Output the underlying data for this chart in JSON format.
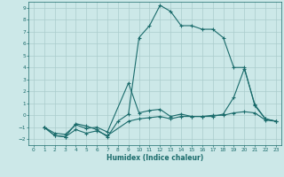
{
  "title": "",
  "xlabel": "Humidex (Indice chaleur)",
  "bg_color": "#cce8e8",
  "grid_color": "#aacccc",
  "line_color": "#1a6b6b",
  "xlim": [
    -0.5,
    23.5
  ],
  "ylim": [
    -2.5,
    9.5
  ],
  "xticks": [
    0,
    1,
    2,
    3,
    4,
    5,
    6,
    7,
    8,
    9,
    10,
    11,
    12,
    13,
    14,
    15,
    16,
    17,
    18,
    19,
    20,
    21,
    22,
    23
  ],
  "yticks": [
    -2,
    -1,
    0,
    1,
    2,
    3,
    4,
    5,
    6,
    7,
    8,
    9
  ],
  "line1_x": [
    1,
    2,
    3,
    4,
    5,
    6,
    7,
    8,
    9,
    10,
    11,
    12,
    13,
    14,
    15,
    16,
    17,
    18,
    19,
    20,
    21,
    22,
    23
  ],
  "line1_y": [
    -1,
    -1.7,
    -1.8,
    -0.7,
    -0.9,
    -1.2,
    -1.8,
    -0.5,
    0.1,
    6.5,
    7.5,
    9.2,
    8.7,
    7.5,
    7.5,
    7.2,
    7.2,
    6.5,
    4.0,
    4.0,
    0.8,
    -0.3,
    -0.5
  ],
  "line2_x": [
    1,
    2,
    3,
    4,
    5,
    6,
    7,
    9,
    10,
    11,
    12,
    13,
    14,
    15,
    16,
    17,
    18,
    19,
    20,
    21,
    22,
    23
  ],
  "line2_y": [
    -1,
    -1.5,
    -1.6,
    -0.8,
    -1.1,
    -1.0,
    -1.4,
    2.7,
    0.2,
    0.4,
    0.5,
    -0.1,
    0.1,
    -0.1,
    -0.1,
    -0.1,
    0.1,
    1.5,
    3.9,
    0.9,
    -0.3,
    -0.5
  ],
  "line3_x": [
    1,
    2,
    3,
    4,
    5,
    6,
    7,
    9,
    10,
    11,
    12,
    13,
    14,
    15,
    16,
    17,
    18,
    19,
    20,
    21,
    22,
    23
  ],
  "line3_y": [
    -1,
    -1.7,
    -1.8,
    -1.2,
    -1.5,
    -1.3,
    -1.7,
    -0.5,
    -0.3,
    -0.2,
    -0.1,
    -0.3,
    -0.1,
    -0.1,
    -0.1,
    0.0,
    0.0,
    0.2,
    0.3,
    0.2,
    -0.4,
    -0.5
  ]
}
